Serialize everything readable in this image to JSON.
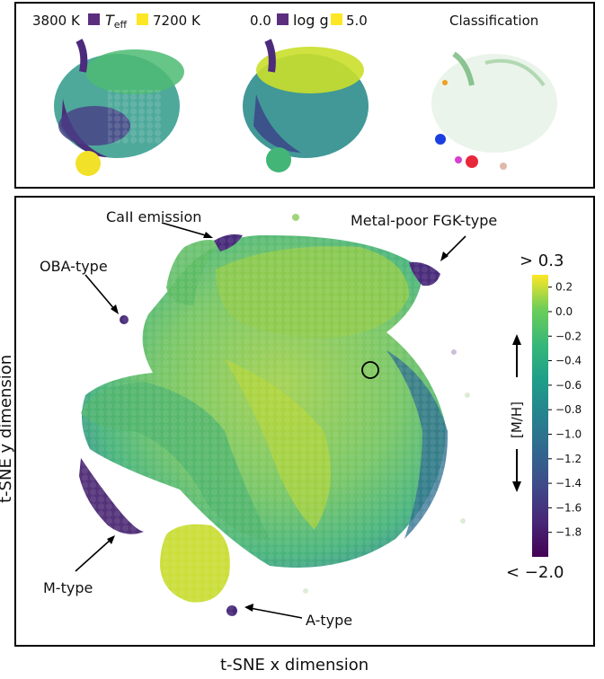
{
  "top_panels": {
    "teff": {
      "min_label": "3800 K",
      "max_label": "7200 K",
      "name": "T",
      "subscript": "eff"
    },
    "logg": {
      "min_label": "0.0",
      "max_label": "5.0",
      "name": "log g"
    },
    "classification": {
      "title": "Classification"
    }
  },
  "colors": {
    "low": "#440154",
    "high": "#fde725",
    "frame": "#000000"
  },
  "chart_data": {
    "type": "heatmap",
    "xlabel": "t-SNE x dimension",
    "ylabel": "t-SNE y dimension",
    "colorbar": {
      "label": "[M/H]",
      "top_label": "> 0.3",
      "bottom_label": "< −2.0",
      "range": [
        -2.0,
        0.3
      ],
      "ticks": [
        "0.2",
        "0.0",
        "−0.2",
        "−0.4",
        "−0.6",
        "−0.8",
        "−1.0",
        "−1.2",
        "−1.4",
        "−1.6",
        "−1.8"
      ],
      "tick_values": [
        0.2,
        0.0,
        -0.2,
        -0.4,
        -0.6,
        -0.8,
        -1.0,
        -1.2,
        -1.4,
        -1.6,
        -1.8
      ]
    },
    "annotations": [
      {
        "id": "caii",
        "text": "CaII emission"
      },
      {
        "id": "mpfgk",
        "text": "Metal-poor FGK-type"
      },
      {
        "id": "oba",
        "text": "OBA-type"
      },
      {
        "id": "mtype",
        "text": "M-type"
      },
      {
        "id": "atype",
        "text": "A-type"
      }
    ]
  }
}
